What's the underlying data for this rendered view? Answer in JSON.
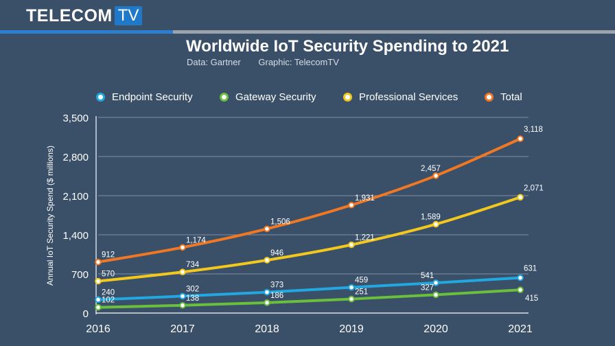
{
  "brand": {
    "main": "TELECOM",
    "box": "TV"
  },
  "header": {
    "title": "Worldwide IoT Security Spending to 2021",
    "data_source": "Data: Gartner",
    "graphic_credit": "Graphic: TelecomTV"
  },
  "colors": {
    "endpoint": "#22a7e0",
    "gateway": "#6abf3c",
    "professional": "#f2c81e",
    "total": "#f07824"
  },
  "chart_data": {
    "type": "line",
    "title": "Worldwide IoT Security Spending to 2021",
    "xlabel": "",
    "ylabel": "Annual IoT Security Spend ($ millions)",
    "x": [
      "2016",
      "2017",
      "2018",
      "2019",
      "2020",
      "2021"
    ],
    "ylim": [
      0,
      3500
    ],
    "yticks": [
      0,
      700,
      1400,
      2100,
      2800,
      3500
    ],
    "ytick_labels": [
      "0",
      "700",
      "1,400",
      "2,100",
      "2,800",
      "3,500"
    ],
    "grid": true,
    "legend_position": "top",
    "series": [
      {
        "name": "Endpoint Security",
        "key": "endpoint",
        "values": [
          240,
          302,
          373,
          459,
          541,
          631
        ],
        "labels": [
          "240",
          "302",
          "373",
          "459",
          "541",
          "631"
        ]
      },
      {
        "name": "Gateway Security",
        "key": "gateway",
        "values": [
          102,
          138,
          186,
          251,
          327,
          415
        ],
        "labels": [
          "102",
          "138",
          "186",
          "251",
          "327",
          "415"
        ]
      },
      {
        "name": "Professional Services",
        "key": "professional",
        "values": [
          570,
          734,
          946,
          1221,
          1589,
          2071
        ],
        "labels": [
          "570",
          "734",
          "946",
          "1,221",
          "1,589",
          "2,071"
        ]
      },
      {
        "name": "Total",
        "key": "total",
        "values": [
          912,
          1174,
          1506,
          1931,
          2457,
          3118
        ],
        "labels": [
          "912",
          "1,174",
          "1,506",
          "1,931",
          "2,457",
          "3,118"
        ]
      }
    ]
  }
}
